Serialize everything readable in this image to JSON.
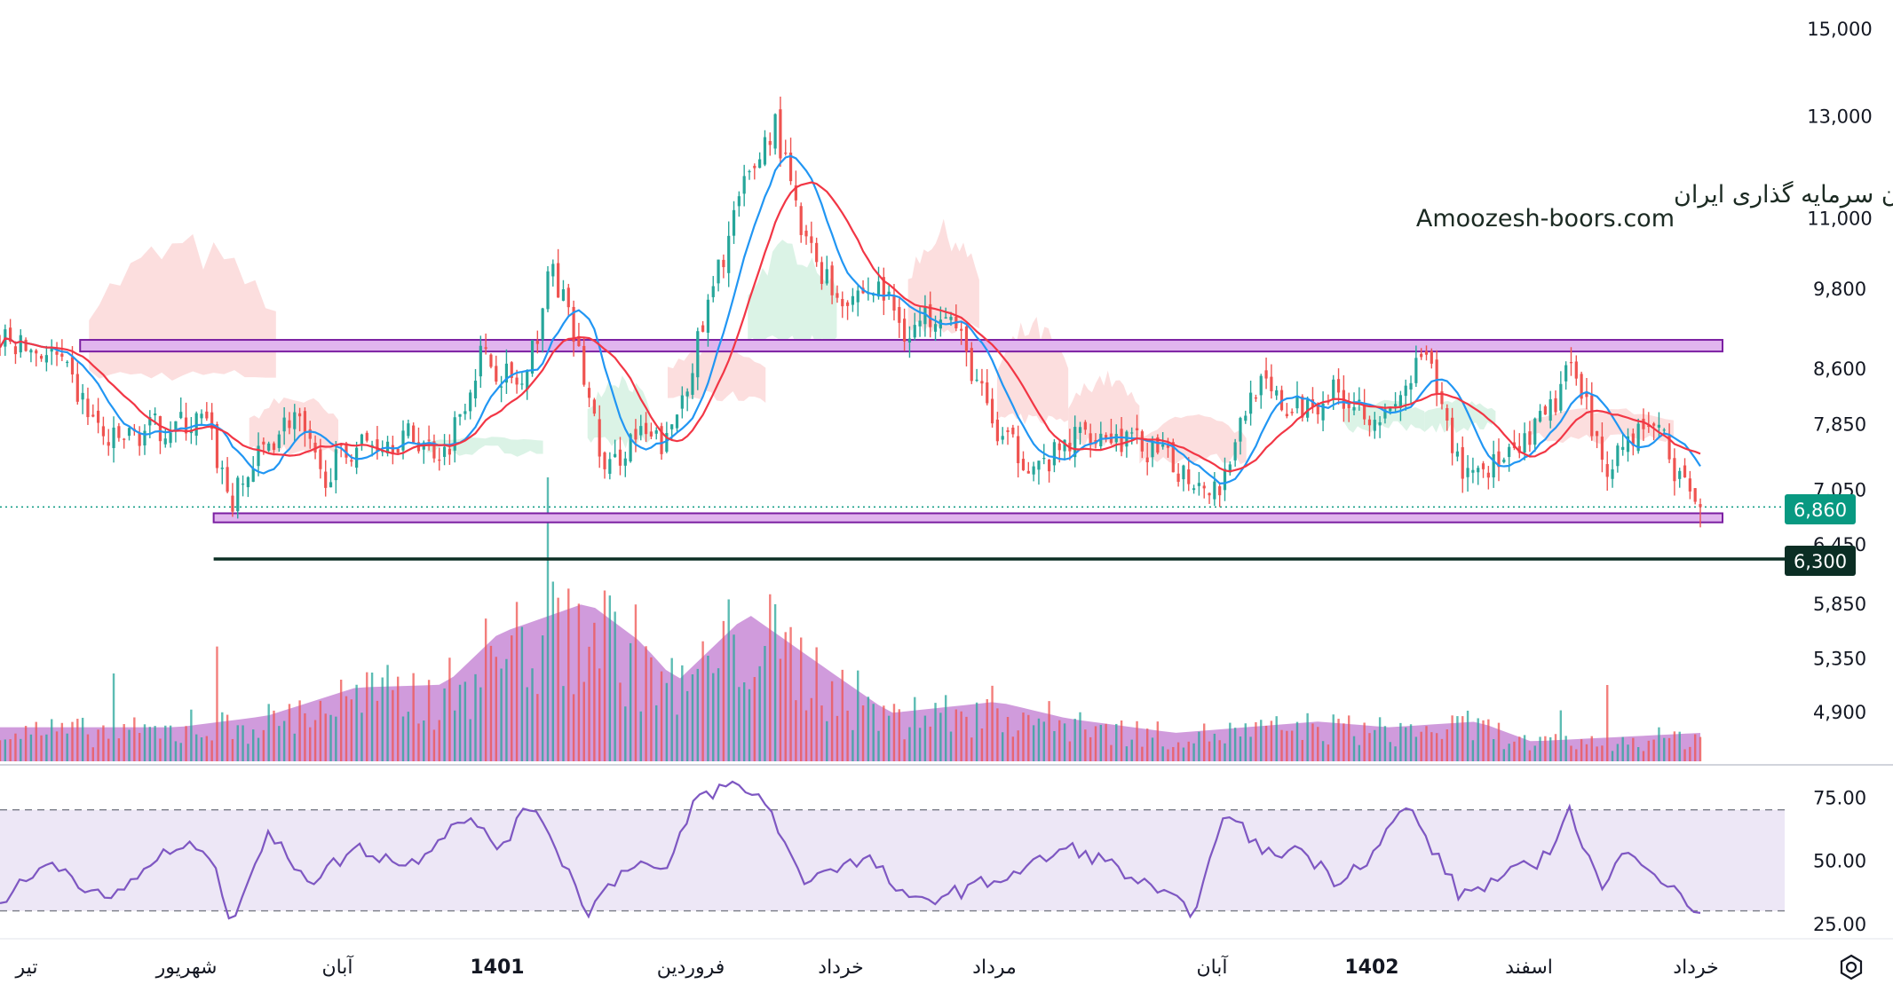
{
  "watermark": {
    "line1": "انجمن خبرگان سرمایه گذاری ایران",
    "line2": "Amoozesh-boors.com"
  },
  "price_axis": {
    "ticks": [
      15000,
      13000,
      11000,
      9800,
      8600,
      7850,
      7050,
      6450,
      5850,
      5350,
      4900
    ],
    "tick_labels": [
      "15,000",
      "13,000",
      "11,000",
      "9,800",
      "8,600",
      "7,850",
      "7,050",
      "6,450",
      "5,850",
      "5,350",
      "4,900"
    ],
    "scale": "log"
  },
  "rsi_axis": {
    "ticks": [
      75,
      50,
      25
    ],
    "tick_labels": [
      "75.00",
      "50.00",
      "25.00"
    ]
  },
  "time_axis": {
    "labels": [
      "تیر",
      "شهریور",
      "آبان",
      "1401",
      "فروردین",
      "خرداد",
      "مرداد",
      "آبان",
      "1402",
      "اسفند",
      "خرداد"
    ],
    "bold": [
      false,
      false,
      false,
      true,
      false,
      false,
      false,
      false,
      true,
      false,
      false
    ]
  },
  "badges": {
    "last_price": "6,860",
    "support_level": "6,300"
  },
  "colors": {
    "up": "#26a69a",
    "down": "#ef5350",
    "zone_fill": "#e1b5ee",
    "zone_border": "#7b1fa2",
    "support_line": "#0b2e24",
    "ma_fast": "#2196f3",
    "ma_slow": "#f23645",
    "volume_area": "#c07ad0",
    "rsi_line": "#7e57c2",
    "rsi_band": "#ede7f6",
    "cloud_bear": "#fbd6d6",
    "cloud_bull": "#d2f0e0",
    "last_price_badge": "#089981",
    "support_badge": "#0b2e24"
  },
  "chart_data": {
    "type": "candlestick",
    "title": "",
    "price_scale": "log",
    "price_range": [
      4400,
      15500
    ],
    "horizontal_zones": [
      {
        "from": 8850,
        "to": 9020
      },
      {
        "from": 6690,
        "to": 6790
      }
    ],
    "horizontal_lines": [
      {
        "value": 6300
      }
    ],
    "last_price": 6860,
    "close_path": [
      {
        "t": 0,
        "v": 9000
      },
      {
        "t": 0.03,
        "v": 8800
      },
      {
        "t": 0.06,
        "v": 7600
      },
      {
        "t": 0.085,
        "v": 7800
      },
      {
        "t": 0.115,
        "v": 7900
      },
      {
        "t": 0.13,
        "v": 6900
      },
      {
        "t": 0.15,
        "v": 7600
      },
      {
        "t": 0.165,
        "v": 8000
      },
      {
        "t": 0.18,
        "v": 7200
      },
      {
        "t": 0.2,
        "v": 7600
      },
      {
        "t": 0.23,
        "v": 7700
      },
      {
        "t": 0.25,
        "v": 7500
      },
      {
        "t": 0.27,
        "v": 8800
      },
      {
        "t": 0.295,
        "v": 8300
      },
      {
        "t": 0.31,
        "v": 10200
      },
      {
        "t": 0.325,
        "v": 8800
      },
      {
        "t": 0.34,
        "v": 7200
      },
      {
        "t": 0.355,
        "v": 7700
      },
      {
        "t": 0.375,
        "v": 7600
      },
      {
        "t": 0.395,
        "v": 9200
      },
      {
        "t": 0.415,
        "v": 11300
      },
      {
        "t": 0.435,
        "v": 12900
      },
      {
        "t": 0.45,
        "v": 10700
      },
      {
        "t": 0.47,
        "v": 9700
      },
      {
        "t": 0.495,
        "v": 9800
      },
      {
        "t": 0.51,
        "v": 9100
      },
      {
        "t": 0.53,
        "v": 9600
      },
      {
        "t": 0.56,
        "v": 7700
      },
      {
        "t": 0.585,
        "v": 7300
      },
      {
        "t": 0.61,
        "v": 7800
      },
      {
        "t": 0.64,
        "v": 7600
      },
      {
        "t": 0.67,
        "v": 7200
      },
      {
        "t": 0.685,
        "v": 7100
      },
      {
        "t": 0.705,
        "v": 8400
      },
      {
        "t": 0.725,
        "v": 8000
      },
      {
        "t": 0.75,
        "v": 8300
      },
      {
        "t": 0.78,
        "v": 7900
      },
      {
        "t": 0.8,
        "v": 8800
      },
      {
        "t": 0.82,
        "v": 7300
      },
      {
        "t": 0.85,
        "v": 7400
      },
      {
        "t": 0.87,
        "v": 8000
      },
      {
        "t": 0.885,
        "v": 8700
      },
      {
        "t": 0.9,
        "v": 7300
      },
      {
        "t": 0.915,
        "v": 7700
      },
      {
        "t": 0.93,
        "v": 7900
      },
      {
        "t": 0.945,
        "v": 7100
      },
      {
        "t": 0.955,
        "v": 6860
      }
    ],
    "volume_path": [
      {
        "t": 0,
        "v": 0.12
      },
      {
        "t": 0.1,
        "v": 0.12
      },
      {
        "t": 0.15,
        "v": 0.16
      },
      {
        "t": 0.2,
        "v": 0.26
      },
      {
        "t": 0.25,
        "v": 0.27
      },
      {
        "t": 0.28,
        "v": 0.45
      },
      {
        "t": 0.33,
        "v": 0.56
      },
      {
        "t": 0.36,
        "v": 0.42
      },
      {
        "t": 0.38,
        "v": 0.28
      },
      {
        "t": 0.42,
        "v": 0.52
      },
      {
        "t": 0.47,
        "v": 0.3
      },
      {
        "t": 0.5,
        "v": 0.17
      },
      {
        "t": 0.56,
        "v": 0.21
      },
      {
        "t": 0.6,
        "v": 0.15
      },
      {
        "t": 0.66,
        "v": 0.1
      },
      {
        "t": 0.74,
        "v": 0.14
      },
      {
        "t": 0.78,
        "v": 0.12
      },
      {
        "t": 0.83,
        "v": 0.14
      },
      {
        "t": 0.86,
        "v": 0.07
      },
      {
        "t": 0.955,
        "v": 0.1
      }
    ],
    "rsi": {
      "range": [
        20,
        85
      ],
      "levels": [
        70,
        30
      ],
      "path": [
        {
          "t": 0,
          "v": 34
        },
        {
          "t": 0.03,
          "v": 50
        },
        {
          "t": 0.06,
          "v": 33
        },
        {
          "t": 0.09,
          "v": 52
        },
        {
          "t": 0.115,
          "v": 56
        },
        {
          "t": 0.13,
          "v": 27
        },
        {
          "t": 0.15,
          "v": 60
        },
        {
          "t": 0.175,
          "v": 42
        },
        {
          "t": 0.2,
          "v": 55
        },
        {
          "t": 0.23,
          "v": 48
        },
        {
          "t": 0.26,
          "v": 68
        },
        {
          "t": 0.28,
          "v": 55
        },
        {
          "t": 0.3,
          "v": 73
        },
        {
          "t": 0.33,
          "v": 30
        },
        {
          "t": 0.355,
          "v": 50
        },
        {
          "t": 0.375,
          "v": 45
        },
        {
          "t": 0.39,
          "v": 74
        },
        {
          "t": 0.41,
          "v": 80
        },
        {
          "t": 0.43,
          "v": 74
        },
        {
          "t": 0.45,
          "v": 42
        },
        {
          "t": 0.47,
          "v": 48
        },
        {
          "t": 0.49,
          "v": 50
        },
        {
          "t": 0.51,
          "v": 33
        },
        {
          "t": 0.54,
          "v": 38
        },
        {
          "t": 0.57,
          "v": 45
        },
        {
          "t": 0.6,
          "v": 55
        },
        {
          "t": 0.62,
          "v": 50
        },
        {
          "t": 0.65,
          "v": 37
        },
        {
          "t": 0.67,
          "v": 30
        },
        {
          "t": 0.69,
          "v": 70
        },
        {
          "t": 0.71,
          "v": 52
        },
        {
          "t": 0.73,
          "v": 55
        },
        {
          "t": 0.75,
          "v": 42
        },
        {
          "t": 0.77,
          "v": 52
        },
        {
          "t": 0.79,
          "v": 72
        },
        {
          "t": 0.82,
          "v": 36
        },
        {
          "t": 0.85,
          "v": 45
        },
        {
          "t": 0.87,
          "v": 52
        },
        {
          "t": 0.88,
          "v": 72
        },
        {
          "t": 0.9,
          "v": 38
        },
        {
          "t": 0.915,
          "v": 56
        },
        {
          "t": 0.93,
          "v": 45
        },
        {
          "t": 0.945,
          "v": 34
        },
        {
          "t": 0.955,
          "v": 30
        }
      ]
    }
  }
}
